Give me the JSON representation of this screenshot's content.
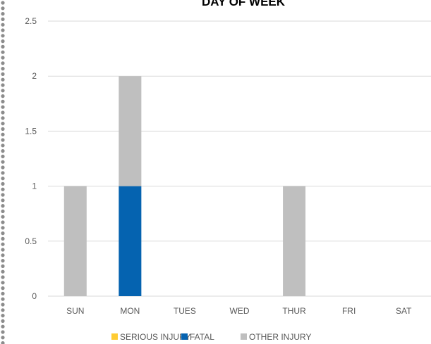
{
  "chart_data": {
    "type": "bar",
    "stacked": true,
    "title": "DAY OF WEEK",
    "categories": [
      "SUN",
      "MON",
      "TUES",
      "WED",
      "THUR",
      "FRI",
      "SAT"
    ],
    "series": [
      {
        "name": "SERIOUS INJURY",
        "color": "#FFCC33",
        "values": [
          0,
          0,
          0,
          0,
          0,
          0,
          0
        ]
      },
      {
        "name": "FATAL",
        "color": "#0563B0",
        "values": [
          0,
          1,
          0,
          0,
          0,
          0,
          0
        ]
      },
      {
        "name": "OTHER INJURY",
        "color": "#BFBFBF",
        "values": [
          1,
          1,
          0,
          0,
          1,
          0,
          0
        ]
      }
    ],
    "ylim": [
      0,
      2.5
    ],
    "yticks": [
      "0",
      "0.5",
      "1",
      "1.5",
      "2",
      "2.5"
    ],
    "grid": true,
    "legend_position": "bottom"
  }
}
